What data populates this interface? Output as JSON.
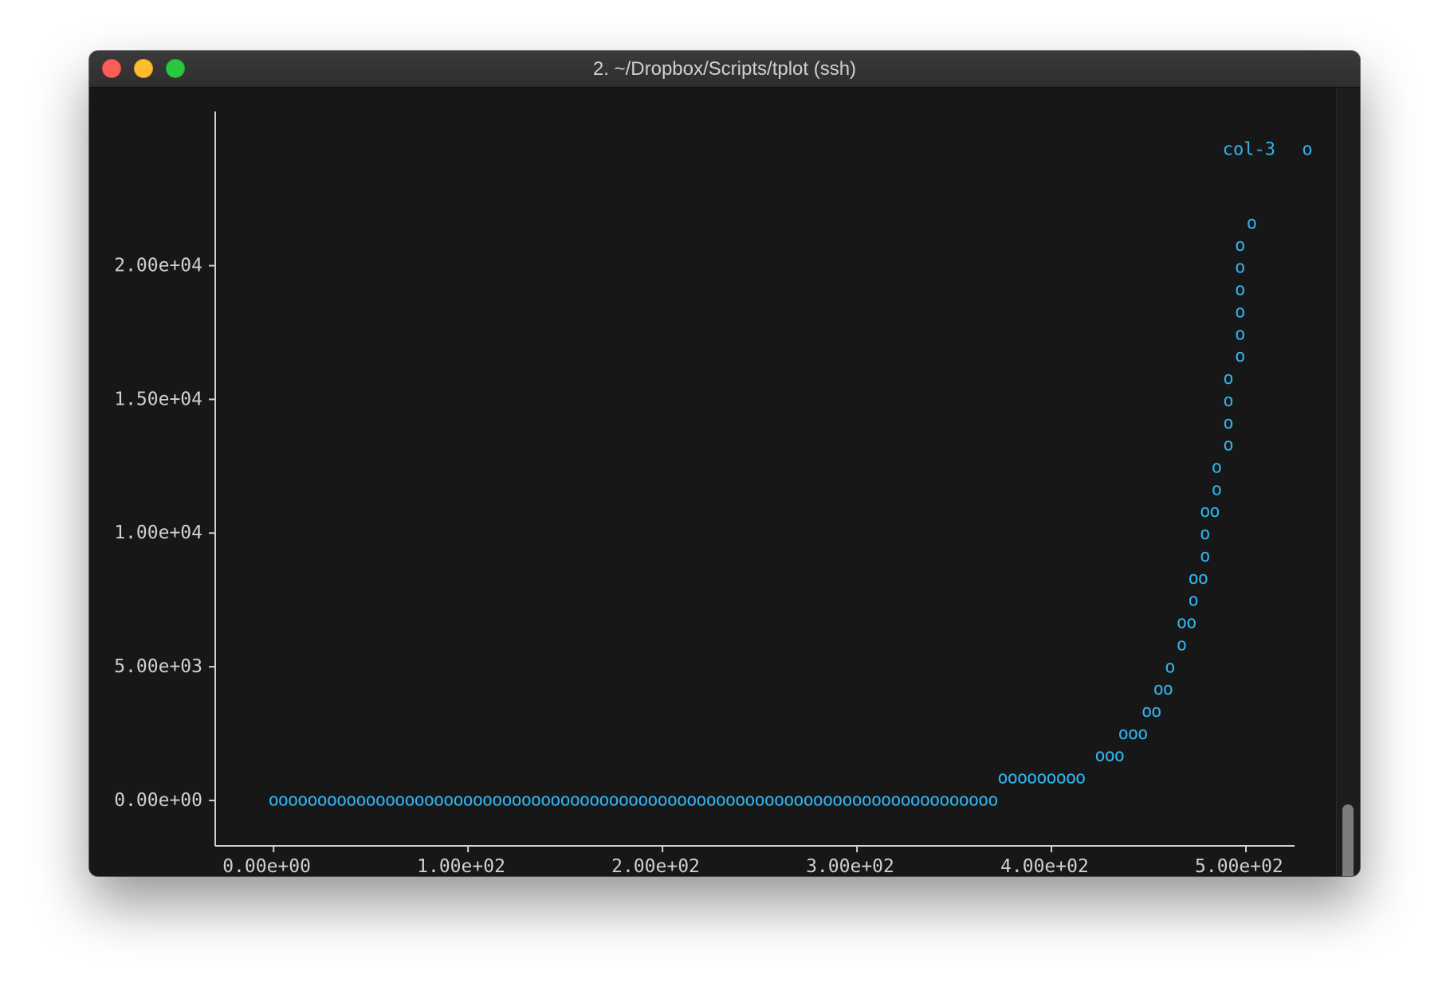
{
  "window": {
    "title": "2. ~/Dropbox/Scripts/tplot (ssh)"
  },
  "terminal": {
    "prompt": "$"
  },
  "colors": {
    "background": "#171717",
    "text": "#d0d0d0",
    "series": "#2fb4ee"
  },
  "chart_data": {
    "type": "scatter",
    "marker": "o",
    "xlim": [
      -30,
      525
    ],
    "ylim": [
      -1700,
      23800
    ],
    "xticks": [
      0,
      100,
      200,
      300,
      400,
      500
    ],
    "xtick_labels": [
      "0.00e+00",
      "1.00e+02",
      "2.00e+02",
      "3.00e+02",
      "4.00e+02",
      "5.00e+02"
    ],
    "yticks": [
      0,
      5000,
      10000,
      15000,
      20000
    ],
    "ytick_labels": [
      "0.00e+00",
      "5.00e+03",
      "1.00e+04",
      "1.50e+04",
      "2.00e+04"
    ],
    "legend": {
      "label": "col-3",
      "marker": "o",
      "placement": "top-right"
    },
    "series": [
      {
        "name": "col-3",
        "points": [
          {
            "x": 0,
            "y": 0
          },
          {
            "x": 5,
            "y": 0
          },
          {
            "x": 10,
            "y": 0
          },
          {
            "x": 15,
            "y": 0
          },
          {
            "x": 20,
            "y": 0
          },
          {
            "x": 25,
            "y": 0
          },
          {
            "x": 30,
            "y": 0
          },
          {
            "x": 35,
            "y": 0
          },
          {
            "x": 40,
            "y": 0
          },
          {
            "x": 45,
            "y": 0
          },
          {
            "x": 50,
            "y": 0
          },
          {
            "x": 55,
            "y": 0
          },
          {
            "x": 60,
            "y": 0
          },
          {
            "x": 65,
            "y": 0
          },
          {
            "x": 70,
            "y": 0
          },
          {
            "x": 75,
            "y": 0
          },
          {
            "x": 80,
            "y": 0
          },
          {
            "x": 85,
            "y": 0
          },
          {
            "x": 90,
            "y": 0
          },
          {
            "x": 95,
            "y": 0
          },
          {
            "x": 100,
            "y": 0
          },
          {
            "x": 105,
            "y": 0
          },
          {
            "x": 110,
            "y": 0
          },
          {
            "x": 115,
            "y": 0
          },
          {
            "x": 120,
            "y": 0
          },
          {
            "x": 125,
            "y": 0
          },
          {
            "x": 130,
            "y": 0
          },
          {
            "x": 135,
            "y": 0
          },
          {
            "x": 140,
            "y": 0
          },
          {
            "x": 145,
            "y": 0
          },
          {
            "x": 150,
            "y": 0
          },
          {
            "x": 155,
            "y": 0
          },
          {
            "x": 160,
            "y": 0
          },
          {
            "x": 165,
            "y": 0
          },
          {
            "x": 170,
            "y": 0
          },
          {
            "x": 175,
            "y": 0
          },
          {
            "x": 180,
            "y": 0
          },
          {
            "x": 185,
            "y": 0
          },
          {
            "x": 190,
            "y": 0
          },
          {
            "x": 195,
            "y": 0
          },
          {
            "x": 200,
            "y": 0
          },
          {
            "x": 205,
            "y": 0
          },
          {
            "x": 210,
            "y": 0
          },
          {
            "x": 215,
            "y": 0
          },
          {
            "x": 220,
            "y": 0
          },
          {
            "x": 225,
            "y": 0
          },
          {
            "x": 230,
            "y": 0
          },
          {
            "x": 235,
            "y": 0
          },
          {
            "x": 240,
            "y": 0
          },
          {
            "x": 245,
            "y": 0
          },
          {
            "x": 250,
            "y": 0
          },
          {
            "x": 255,
            "y": 0
          },
          {
            "x": 260,
            "y": 0
          },
          {
            "x": 265,
            "y": 0
          },
          {
            "x": 270,
            "y": 0
          },
          {
            "x": 275,
            "y": 0
          },
          {
            "x": 280,
            "y": 0
          },
          {
            "x": 285,
            "y": 0
          },
          {
            "x": 290,
            "y": 0
          },
          {
            "x": 295,
            "y": 0
          },
          {
            "x": 300,
            "y": 0
          },
          {
            "x": 305,
            "y": 0
          },
          {
            "x": 310,
            "y": 0
          },
          {
            "x": 315,
            "y": 0
          },
          {
            "x": 320,
            "y": 0
          },
          {
            "x": 325,
            "y": 0
          },
          {
            "x": 330,
            "y": 0
          },
          {
            "x": 335,
            "y": 0
          },
          {
            "x": 340,
            "y": 0
          },
          {
            "x": 345,
            "y": 0
          },
          {
            "x": 350,
            "y": 0
          },
          {
            "x": 355,
            "y": 0
          },
          {
            "x": 360,
            "y": 0
          },
          {
            "x": 365,
            "y": 0
          },
          {
            "x": 370,
            "y": 0
          },
          {
            "x": 375,
            "y": 830
          },
          {
            "x": 380,
            "y": 830
          },
          {
            "x": 385,
            "y": 830
          },
          {
            "x": 390,
            "y": 830
          },
          {
            "x": 395,
            "y": 830
          },
          {
            "x": 400,
            "y": 830
          },
          {
            "x": 405,
            "y": 830
          },
          {
            "x": 410,
            "y": 830
          },
          {
            "x": 415,
            "y": 830
          },
          {
            "x": 425,
            "y": 1660
          },
          {
            "x": 430,
            "y": 1660
          },
          {
            "x": 435,
            "y": 1660
          },
          {
            "x": 437,
            "y": 2490
          },
          {
            "x": 442,
            "y": 2490
          },
          {
            "x": 447,
            "y": 2490
          },
          {
            "x": 449,
            "y": 3320
          },
          {
            "x": 454,
            "y": 3320
          },
          {
            "x": 455,
            "y": 4150
          },
          {
            "x": 460,
            "y": 4150
          },
          {
            "x": 461,
            "y": 4980
          },
          {
            "x": 467,
            "y": 5810
          },
          {
            "x": 467,
            "y": 6640
          },
          {
            "x": 472,
            "y": 6640
          },
          {
            "x": 473,
            "y": 7470
          },
          {
            "x": 473,
            "y": 8300
          },
          {
            "x": 478,
            "y": 8300
          },
          {
            "x": 479,
            "y": 9130
          },
          {
            "x": 479,
            "y": 9960
          },
          {
            "x": 479,
            "y": 10790
          },
          {
            "x": 484,
            "y": 10790
          },
          {
            "x": 485,
            "y": 11620
          },
          {
            "x": 485,
            "y": 12450
          },
          {
            "x": 491,
            "y": 13280
          },
          {
            "x": 491,
            "y": 14110
          },
          {
            "x": 491,
            "y": 14940
          },
          {
            "x": 491,
            "y": 15770
          },
          {
            "x": 497,
            "y": 16600
          },
          {
            "x": 497,
            "y": 17430
          },
          {
            "x": 497,
            "y": 18260
          },
          {
            "x": 497,
            "y": 19090
          },
          {
            "x": 497,
            "y": 19920
          },
          {
            "x": 497,
            "y": 20750
          },
          {
            "x": 503,
            "y": 21580
          }
        ]
      }
    ]
  }
}
